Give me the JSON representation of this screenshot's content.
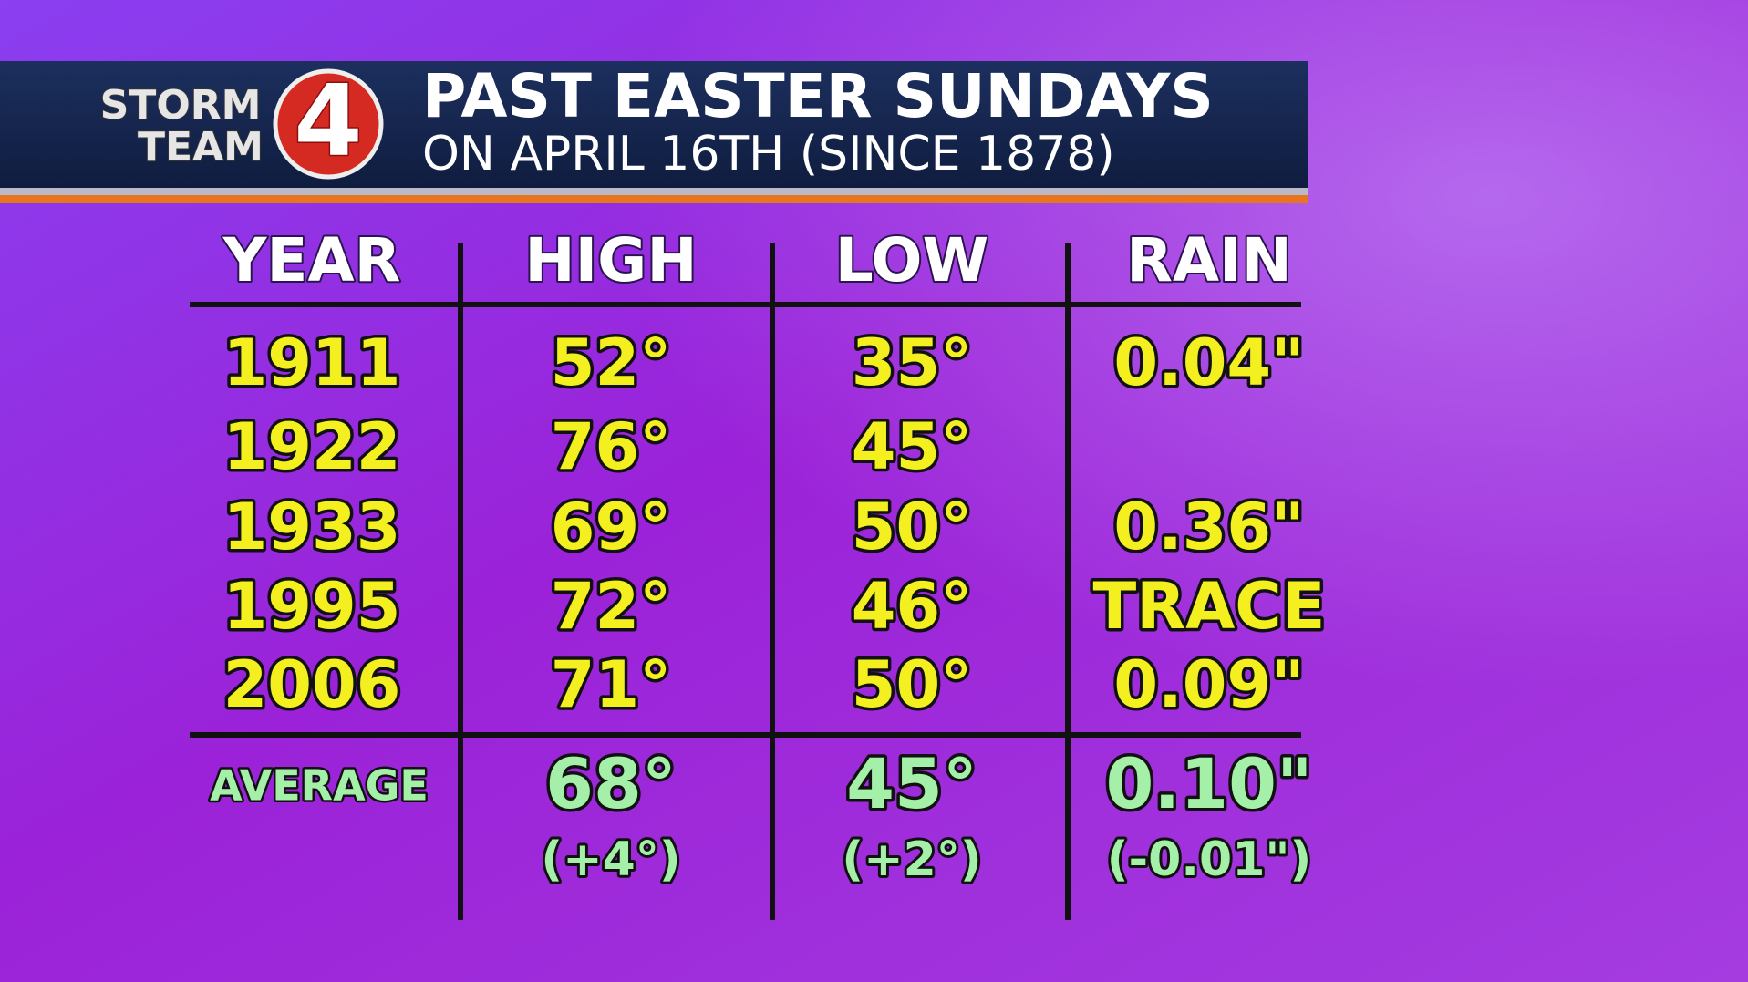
{
  "logo": {
    "line1": "STORM",
    "line2": "TEAM",
    "number": "4"
  },
  "header": {
    "title": "PAST EASTER SUNDAYS",
    "subtitle": "ON APRIL 16TH (SINCE 1878)"
  },
  "table": {
    "headers": [
      "YEAR",
      "HIGH",
      "LOW",
      "RAIN"
    ],
    "rows": [
      [
        "1911",
        "52°",
        "35°",
        "0.04\""
      ],
      [
        "1922",
        "76°",
        "45°",
        null
      ],
      [
        "1933",
        "69°",
        "50°",
        "0.36\""
      ],
      [
        "1995",
        "72°",
        "46°",
        "TRACE"
      ],
      [
        "2006",
        "71°",
        "50°",
        "0.09\""
      ]
    ],
    "average": [
      "AVERAGE",
      "68°",
      "45°",
      "0.10\""
    ],
    "departures": [
      null,
      "(+4°)",
      "(+2°)",
      "(-0.01\")"
    ]
  }
}
